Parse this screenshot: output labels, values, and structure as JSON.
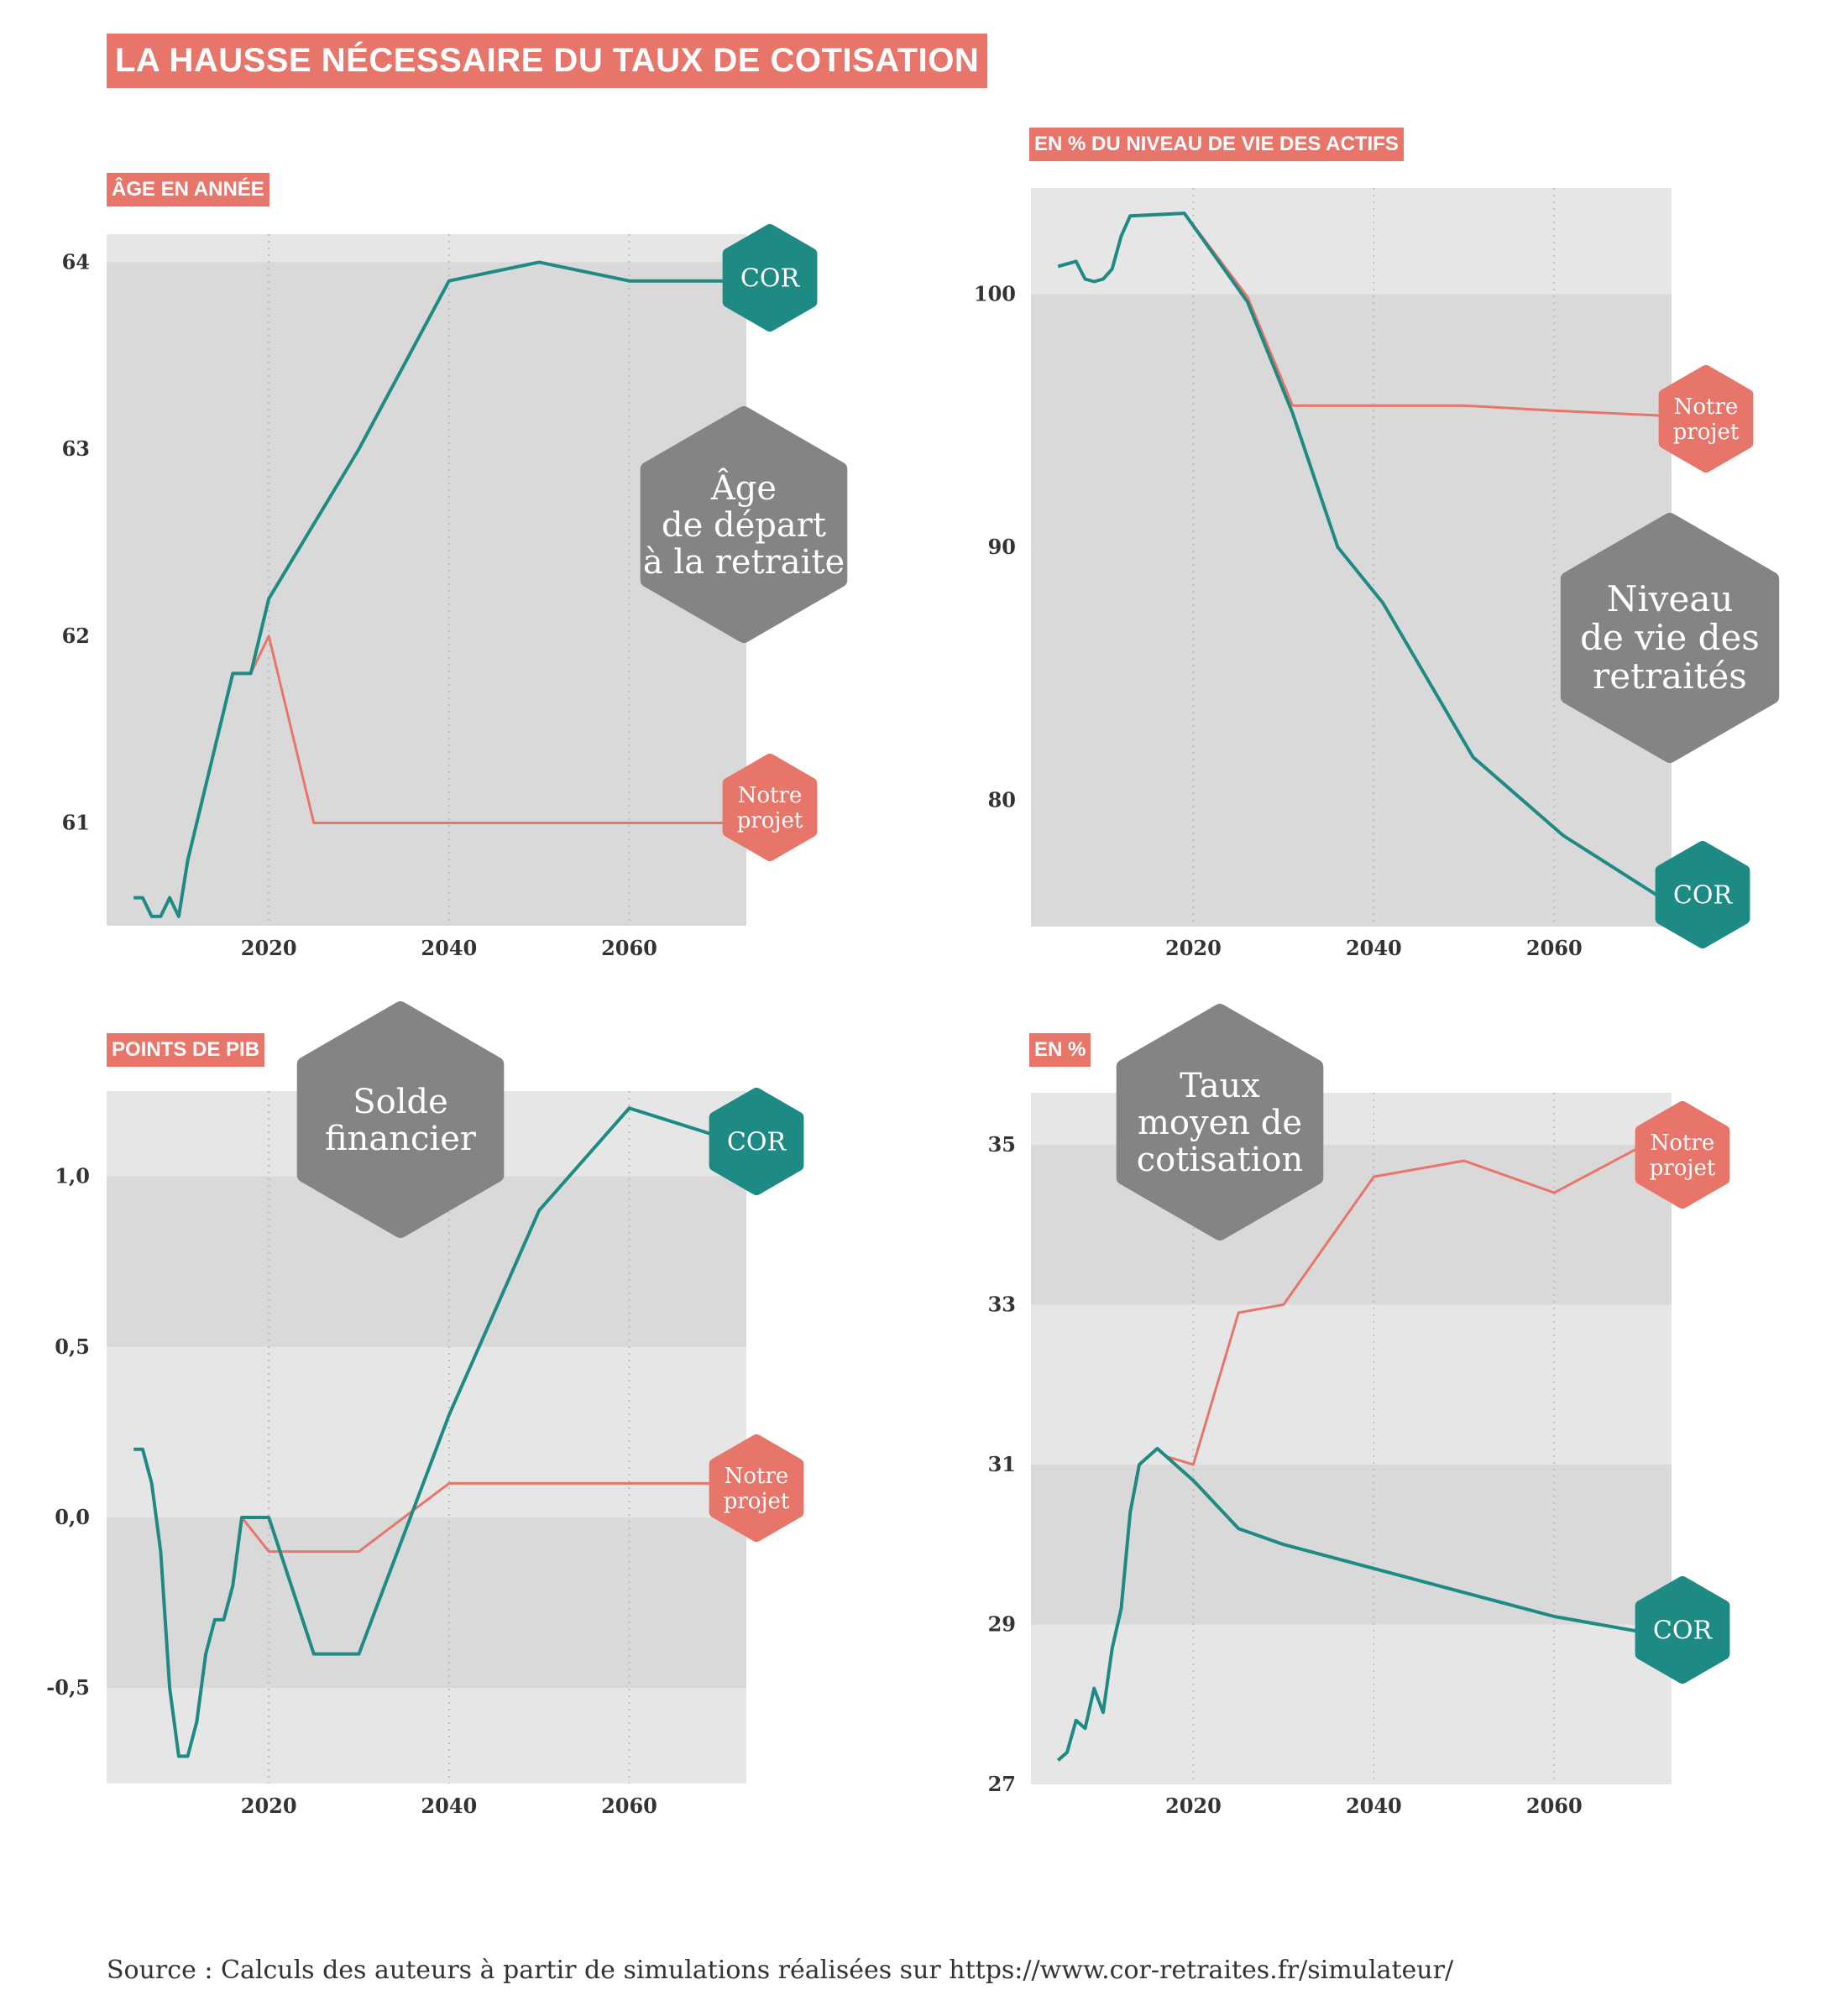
{
  "title": "LA HAUSSE NÉCESSAIRE DU TAUX DE COTISATION",
  "source": "Source : Calculs des auteurs à partir de simulations réalisées sur https://www.cor-retraites.fr/simulateur/",
  "colors": {
    "cor": "#1e8a84",
    "projet": "#e8756a",
    "label_bg": "#848484",
    "band_dark": "#d9d9d9",
    "band_light": "#e6e6e6"
  },
  "chart_data": [
    {
      "type": "line",
      "unit_label": "ÂGE EN ANNÉE",
      "label": [
        "Âge",
        "de départ",
        "à la retraite"
      ],
      "xticks": [
        "2020",
        "2040",
        "2060"
      ],
      "yticks": [
        "61",
        "62",
        "63",
        "64"
      ],
      "ylim": [
        60.45,
        64.15
      ],
      "xlim": [
        2002,
        2073
      ],
      "grid": "alternating horizontal bands",
      "series": [
        {
          "name": "COR",
          "badge": [
            "COR"
          ],
          "x": [
            2005,
            2006,
            2007,
            2008,
            2009,
            2010,
            2011,
            2016,
            2017,
            2018,
            2020,
            2030,
            2040,
            2050,
            2060,
            2072
          ],
          "y": [
            60.6,
            60.6,
            60.5,
            60.5,
            60.6,
            60.5,
            60.8,
            61.8,
            61.8,
            61.8,
            62.2,
            63.0,
            63.9,
            64.0,
            63.9,
            63.9
          ]
        },
        {
          "name": "Notre projet",
          "badge": [
            "Notre",
            "projet"
          ],
          "x": [
            2018,
            2020,
            2025,
            2072
          ],
          "y": [
            61.8,
            62.0,
            61.0,
            61.0
          ]
        }
      ]
    },
    {
      "type": "line",
      "unit_label": "EN % DU NIVEAU DE VIE DES ACTIFS",
      "label": [
        "Niveau",
        "de vie des",
        "retraités"
      ],
      "xticks": [
        "2020",
        "2040",
        "2060"
      ],
      "yticks": [
        "80",
        "90",
        "100"
      ],
      "ylim": [
        75,
        104.2
      ],
      "xlim": [
        2002,
        2073
      ],
      "grid": "alternating horizontal bands",
      "series": [
        {
          "name": "COR",
          "badge": [
            "COR"
          ],
          "x": [
            2005,
            2007,
            2008,
            2009,
            2010,
            2011,
            2012,
            2013,
            2019,
            2026,
            2031,
            2036,
            2041,
            2051,
            2061,
            2072
          ],
          "y": [
            101.1,
            101.3,
            100.6,
            100.5,
            100.6,
            101.0,
            102.3,
            103.1,
            103.2,
            99.7,
            95.3,
            90.0,
            87.8,
            81.7,
            78.6,
            76.1
          ]
        },
        {
          "name": "Notre projet",
          "badge": [
            "Notre",
            "projet"
          ],
          "x": [
            2019,
            2026,
            2031,
            2050,
            2060,
            2072
          ],
          "y": [
            103.2,
            99.9,
            95.6,
            95.6,
            95.4,
            95.2
          ]
        }
      ]
    },
    {
      "type": "line",
      "unit_label": "POINTS DE PIB",
      "label": [
        "Solde",
        "financier"
      ],
      "xticks": [
        "2020",
        "2040",
        "2060"
      ],
      "yticks": [
        "-0,5",
        "0,0",
        "0,5",
        "1,0"
      ],
      "ylim": [
        -0.78,
        1.25
      ],
      "xlim": [
        2002,
        2073
      ],
      "grid": "alternating horizontal bands",
      "series": [
        {
          "name": "COR",
          "badge": [
            "COR"
          ],
          "x": [
            2005,
            2006,
            2007,
            2008,
            2009,
            2010,
            2011,
            2012,
            2013,
            2014,
            2015,
            2016,
            2017,
            2018,
            2020,
            2025,
            2030,
            2040,
            2050,
            2060,
            2072
          ],
          "y": [
            0.2,
            0.2,
            0.1,
            -0.1,
            -0.5,
            -0.7,
            -0.7,
            -0.6,
            -0.4,
            -0.3,
            -0.3,
            -0.2,
            0.0,
            0.0,
            0.0,
            -0.4,
            -0.4,
            0.3,
            0.9,
            1.2,
            1.1
          ]
        },
        {
          "name": "Notre projet",
          "badge": [
            "Notre",
            "projet"
          ],
          "x": [
            2017,
            2020,
            2030,
            2040,
            2072
          ],
          "y": [
            0.0,
            -0.1,
            -0.1,
            0.1,
            0.1
          ]
        }
      ]
    },
    {
      "type": "line",
      "unit_label": "EN %",
      "label": [
        "Taux",
        "moyen de",
        "cotisation"
      ],
      "xticks": [
        "2020",
        "2040",
        "2060"
      ],
      "yticks": [
        "27",
        "29",
        "31",
        "33",
        "35"
      ],
      "ylim": [
        27,
        35.65
      ],
      "xlim": [
        2002,
        2073
      ],
      "grid": "alternating horizontal bands",
      "series": [
        {
          "name": "COR",
          "badge": [
            "COR"
          ],
          "x": [
            2005,
            2006,
            2007,
            2008,
            2009,
            2010,
            2011,
            2012,
            2013,
            2014,
            2016,
            2020,
            2025,
            2030,
            2040,
            2050,
            2060,
            2070
          ],
          "y": [
            27.3,
            27.4,
            27.8,
            27.7,
            28.2,
            27.9,
            28.7,
            29.2,
            30.4,
            31.0,
            31.2,
            30.8,
            30.2,
            30.0,
            29.7,
            29.4,
            29.1,
            28.9
          ]
        },
        {
          "name": "Notre projet",
          "badge": [
            "Notre",
            "projet"
          ],
          "x": [
            2017,
            2020,
            2025,
            2030,
            2040,
            2050,
            2060,
            2070
          ],
          "y": [
            31.1,
            31.0,
            32.9,
            33.0,
            34.6,
            34.8,
            34.4,
            35.0
          ]
        }
      ]
    }
  ]
}
